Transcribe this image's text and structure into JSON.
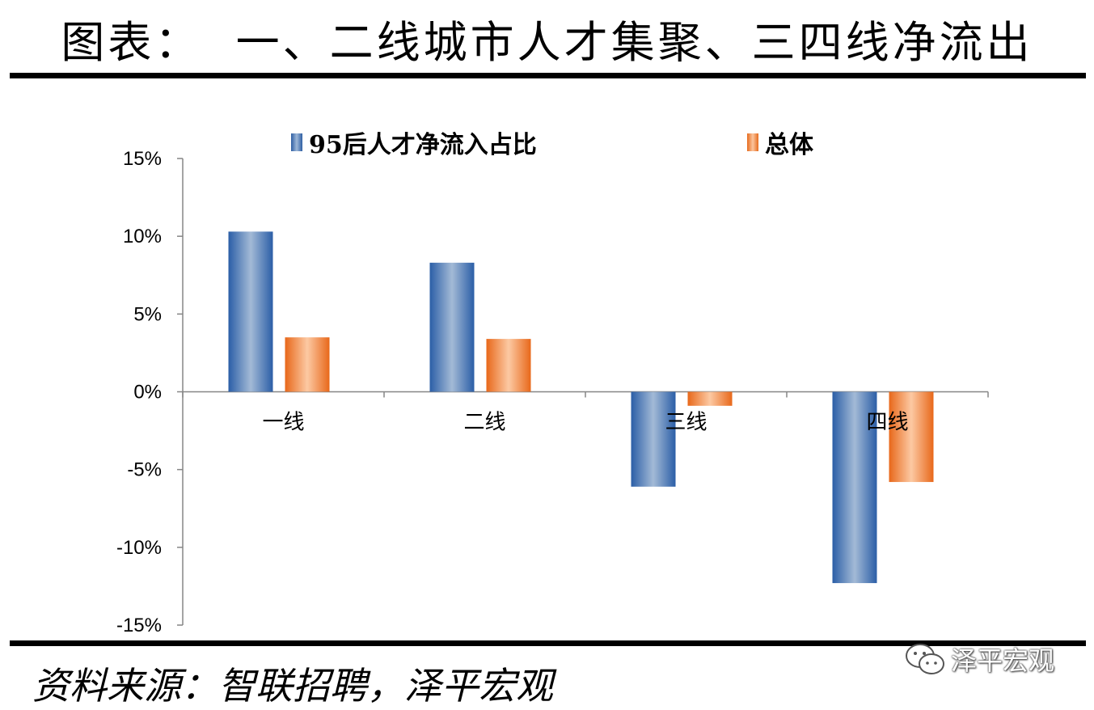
{
  "header": {
    "title": "图表：  一、二线城市人才集聚、三四线净流出"
  },
  "footer": {
    "source": "资料来源：智联招聘，泽平宏观",
    "watermark": "泽平宏观"
  },
  "colors": {
    "series1": "#4f81bd",
    "series2": "#f79646"
  },
  "chart_data": {
    "type": "bar",
    "categories": [
      "一线",
      "二线",
      "三线",
      "四线"
    ],
    "series": [
      {
        "name": "95后人才净流入占比",
        "values": [
          10.3,
          8.3,
          -6.1,
          -12.3
        ]
      },
      {
        "name": "总体",
        "values": [
          3.5,
          3.4,
          -0.9,
          -5.8
        ]
      }
    ],
    "ylim": [
      -15,
      15
    ],
    "yticks": [
      "15%",
      "10%",
      "5%",
      "0%",
      "-5%",
      "-10%",
      "-15%"
    ],
    "legend": "top",
    "grid": false
  }
}
